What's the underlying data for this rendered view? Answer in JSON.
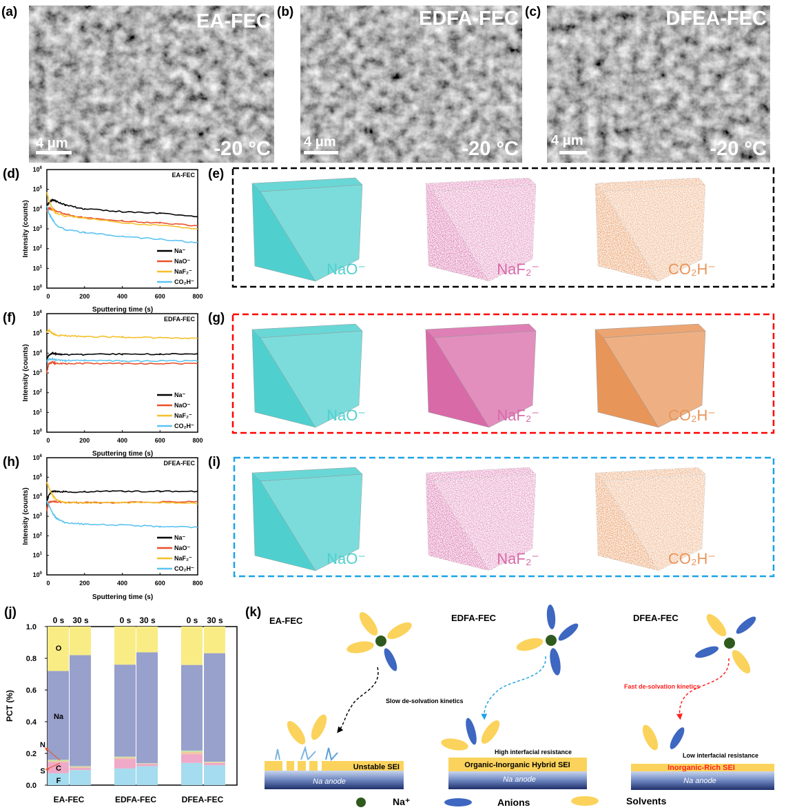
{
  "panel_labels": {
    "a": "(a)",
    "b": "(b)",
    "c": "(c)",
    "d": "(d)",
    "e": "(e)",
    "f": "(f)",
    "g": "(g)",
    "h": "(h)",
    "i": "(i)",
    "j": "(j)",
    "k": "(k)"
  },
  "sem": [
    {
      "title": "EA-FEC",
      "scale": "4 μm",
      "temp": "-20 °C"
    },
    {
      "title": "EDFA-FEC",
      "scale": "4 μm",
      "temp": "-20 °C"
    },
    {
      "title": "DFEA-FEC",
      "scale": "4 μm",
      "temp": "-20 °C"
    }
  ],
  "cube_labels": [
    "NaO⁻",
    "NaF₂⁻",
    "CO₂H⁻"
  ],
  "cube_colors": [
    "#4fd0cf",
    "#d86aa8",
    "#e8955a"
  ],
  "box_colors": [
    "#000000",
    "#ff0000",
    "#1aa3e8"
  ],
  "chart_data": [
    {
      "type": "line",
      "title": "EA-FEC",
      "xlabel": "Sputtering time (s)",
      "ylabel": "Intensity (counts)",
      "xlim": [
        0,
        800
      ],
      "ylim": [
        1,
        1000000
      ],
      "yscale": "log",
      "xticks": [
        0,
        200,
        400,
        600,
        800
      ],
      "legend": "bottom-right",
      "x": [
        0,
        10,
        30,
        50,
        100,
        200,
        400,
        600,
        800
      ],
      "series": [
        {
          "name": "Na⁻",
          "color": "#000000",
          "values": [
            15000,
            20000,
            30000,
            25000,
            16000,
            10000,
            7500,
            6000,
            4200
          ]
        },
        {
          "name": "NaO⁻",
          "color": "#e8502a",
          "values": [
            8000,
            11000,
            10000,
            8000,
            5500,
            3600,
            2500,
            2000,
            1400
          ]
        },
        {
          "name": "NaF₂⁻",
          "color": "#f5c02a",
          "values": [
            70000,
            30000,
            10000,
            6000,
            4500,
            3500,
            2000,
            1500,
            1000
          ]
        },
        {
          "name": "CO₂H⁻",
          "color": "#5cc3f0",
          "values": [
            15000,
            6000,
            3000,
            1500,
            900,
            650,
            400,
            300,
            200
          ]
        }
      ]
    },
    {
      "type": "line",
      "title": "EDFA-FEC",
      "xlabel": "Sputtering time (s)",
      "ylabel": "Intensity (counts)",
      "xlim": [
        0,
        800
      ],
      "ylim": [
        1,
        1000000
      ],
      "yscale": "log",
      "xticks": [
        0,
        200,
        400,
        600,
        800
      ],
      "legend": "bottom-right",
      "x": [
        0,
        10,
        30,
        50,
        100,
        200,
        400,
        600,
        800
      ],
      "series": [
        {
          "name": "Na⁻",
          "color": "#000000",
          "values": [
            5000,
            8000,
            10000,
            9000,
            8500,
            8500,
            9000,
            9000,
            9000
          ]
        },
        {
          "name": "NaO⁻",
          "color": "#e8502a",
          "values": [
            1000,
            3000,
            3500,
            3000,
            3000,
            3000,
            3000,
            3000,
            3000
          ]
        },
        {
          "name": "NaF₂⁻",
          "color": "#f5c02a",
          "values": [
            120000,
            150000,
            100000,
            80000,
            75000,
            70000,
            65000,
            60000,
            55000
          ]
        },
        {
          "name": "CO₂H⁻",
          "color": "#5cc3f0",
          "values": [
            4000,
            5000,
            5000,
            4500,
            4200,
            4200,
            4000,
            4000,
            4000
          ]
        }
      ]
    },
    {
      "type": "line",
      "title": "DFEA-FEC",
      "xlabel": "Sputtering time (s)",
      "ylabel": "Intensity (counts)",
      "xlim": [
        0,
        800
      ],
      "ylim": [
        1,
        1000000
      ],
      "yscale": "log",
      "xticks": [
        0,
        200,
        400,
        600,
        800
      ],
      "legend": "bottom-right",
      "x": [
        0,
        10,
        30,
        50,
        100,
        200,
        400,
        600,
        800
      ],
      "series": [
        {
          "name": "Na⁻",
          "color": "#000000",
          "values": [
            5000,
            12000,
            19000,
            19000,
            18000,
            18000,
            19000,
            19000,
            19000
          ]
        },
        {
          "name": "NaO⁻",
          "color": "#e8502a",
          "values": [
            2000,
            5000,
            6000,
            5500,
            5000,
            5000,
            5000,
            5500,
            5500
          ]
        },
        {
          "name": "NaF₂⁻",
          "color": "#f5c02a",
          "values": [
            55000,
            30000,
            12000,
            7000,
            5000,
            5000,
            5000,
            5000,
            4500
          ]
        },
        {
          "name": "CO₂H⁻",
          "color": "#5cc3f0",
          "values": [
            6000,
            4000,
            1500,
            800,
            450,
            400,
            350,
            300,
            280
          ]
        }
      ]
    },
    {
      "type": "bar",
      "stacked": true,
      "ylabel": "PCT (%)",
      "ylim": [
        0,
        1.0
      ],
      "yticks": [
        0.0,
        0.2,
        0.4,
        0.6,
        0.8,
        1.0
      ],
      "categories": [
        "EA-FEC",
        "EDFA-FEC",
        "DFEA-FEC"
      ],
      "subcategories": [
        "0 s",
        "30 s"
      ],
      "elements": [
        "F",
        "C",
        "S",
        "N",
        "Na",
        "O"
      ],
      "element_colors": [
        "#a6dcef",
        "#eeaac8",
        "#f0c8a0",
        "#bfe3a8",
        "#98a0cc",
        "#f9ec84"
      ],
      "values": [
        [
          [
            0.075,
            0.07,
            0.007,
            0.008,
            0.56,
            0.28
          ],
          [
            0.095,
            0.015,
            0.005,
            0.005,
            0.7,
            0.18
          ]
        ],
        [
          [
            0.105,
            0.06,
            0.01,
            0.005,
            0.58,
            0.24
          ],
          [
            0.12,
            0.013,
            0.003,
            0.002,
            0.7,
            0.162
          ]
        ],
        [
          [
            0.14,
            0.055,
            0.015,
            0.008,
            0.54,
            0.242
          ],
          [
            0.125,
            0.015,
            0.005,
            0.003,
            0.684,
            0.168
          ]
        ]
      ]
    }
  ],
  "schematic": {
    "titles": [
      "EA-FEC",
      "EDFA-FEC",
      "DFEA-FEC"
    ],
    "kinetics_slow": "Slow de-solvation kinetics",
    "kinetics_fast": "Fast de-solvation kinetics",
    "resistance_high": "High interfacial resistance",
    "resistance_low": "Low interfacial resistance",
    "sei": [
      "Unstable SEI",
      "Organic-Inorganic Hybrid SEI",
      "Inorganic-Rich SEI"
    ],
    "anode": "Na anode",
    "legend": {
      "na": "Na⁺",
      "anions": "Anions",
      "solvents": "Solvents"
    },
    "colors": {
      "na": "#2f5a1e",
      "anion": "#3d67c0",
      "solvent": "#fbd35c",
      "sei": "#fbd35c",
      "fast": "#ff2020",
      "slow_arrow": "#000000",
      "mid_arrow": "#1aa3e8"
    }
  }
}
